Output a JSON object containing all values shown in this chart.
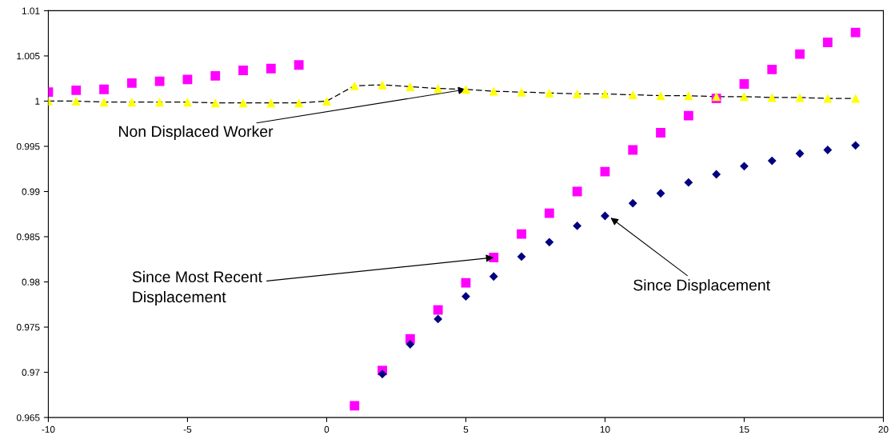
{
  "chart_data": {
    "type": "scatter",
    "xlim": [
      -10,
      20
    ],
    "xticks": [
      -10,
      -5,
      0,
      5,
      10,
      15,
      20
    ],
    "ylim": [
      0.965,
      1.01
    ],
    "yticks": [
      0.965,
      0.97,
      0.975,
      0.98,
      0.985,
      0.99,
      0.995,
      1,
      1.005,
      1.01
    ],
    "grid": false,
    "legend": false,
    "series": [
      {
        "marker": "square",
        "color": "#ff00ff",
        "x": [
          -10,
          -9,
          -8,
          -7,
          -6,
          -5,
          -4,
          -3,
          -2,
          -1,
          1,
          2,
          3,
          4,
          5,
          6,
          7,
          8,
          9,
          10,
          11,
          12,
          13,
          14,
          15,
          16,
          17,
          18,
          19
        ],
        "values": [
          1.001,
          1.0012,
          1.0013,
          1.002,
          1.0022,
          1.0024,
          1.0028,
          1.0034,
          1.0036,
          1.004,
          0.9663,
          0.9702,
          0.9737,
          0.9769,
          0.9799,
          0.9827,
          0.9853,
          0.9876,
          0.99,
          0.9922,
          0.9946,
          0.9965,
          0.9984,
          1.0003,
          1.0019,
          1.0035,
          1.0052,
          1.0065,
          1.0076
        ]
      },
      {
        "marker": "diamond",
        "color": "#000080",
        "x": [
          2,
          3,
          4,
          5,
          6,
          7,
          8,
          9,
          10,
          11,
          12,
          13,
          14,
          15,
          16,
          17,
          18,
          19
        ],
        "values": [
          0.9698,
          0.9731,
          0.9759,
          0.9784,
          0.9806,
          0.9828,
          0.9844,
          0.9862,
          0.9873,
          0.9887,
          0.9898,
          0.991,
          0.9919,
          0.9928,
          0.9934,
          0.9942,
          0.9946,
          0.9951
        ]
      },
      {
        "type": "line",
        "line_style": "dashed",
        "marker": "none",
        "color": "#000000",
        "x": [
          -10,
          -9,
          -8,
          -7,
          -6,
          -5,
          -4,
          -3,
          -2,
          -1,
          0,
          1,
          2,
          3,
          4,
          5,
          6,
          7,
          8,
          9,
          10,
          11,
          12,
          13,
          14,
          15,
          16,
          17,
          18,
          19
        ],
        "values": [
          1.0,
          1.0,
          0.9999,
          0.9999,
          0.9999,
          0.9999,
          0.9998,
          0.9998,
          0.9998,
          0.9998,
          1.0,
          1.0017,
          1.0018,
          1.0016,
          1.0014,
          1.0013,
          1.0011,
          1.001,
          1.0009,
          1.0008,
          1.0008,
          1.0007,
          1.0006,
          1.0006,
          1.0005,
          1.0005,
          1.0004,
          1.0004,
          1.0003,
          1.0003
        ]
      },
      {
        "marker": "triangle",
        "color": "#ffff00",
        "x": [
          -10,
          -9,
          -8,
          -7,
          -6,
          -5,
          -4,
          -3,
          -2,
          -1,
          0,
          1,
          2,
          3,
          4,
          5,
          6,
          7,
          8,
          9,
          10,
          11,
          12,
          13,
          14,
          15,
          16,
          17,
          18,
          19
        ],
        "values": [
          1.0,
          1.0,
          0.9999,
          0.9999,
          0.9999,
          0.9999,
          0.9998,
          0.9998,
          0.9998,
          0.9998,
          1.0,
          1.0017,
          1.0018,
          1.0016,
          1.0014,
          1.0013,
          1.0011,
          1.001,
          1.0009,
          1.0008,
          1.0008,
          1.0007,
          1.0006,
          1.0006,
          1.0005,
          1.0005,
          1.0004,
          1.0004,
          1.0003,
          1.0003
        ]
      }
    ],
    "annotations": [
      {
        "text": "Non Displaced Worker",
        "x": 5,
        "y": 1.0013
      },
      {
        "text": "Since Most Recent\nDisplacement",
        "x": 6,
        "y": 0.9827
      },
      {
        "text": "Since Displacement",
        "x": 10.2,
        "y": 0.9871
      }
    ]
  }
}
